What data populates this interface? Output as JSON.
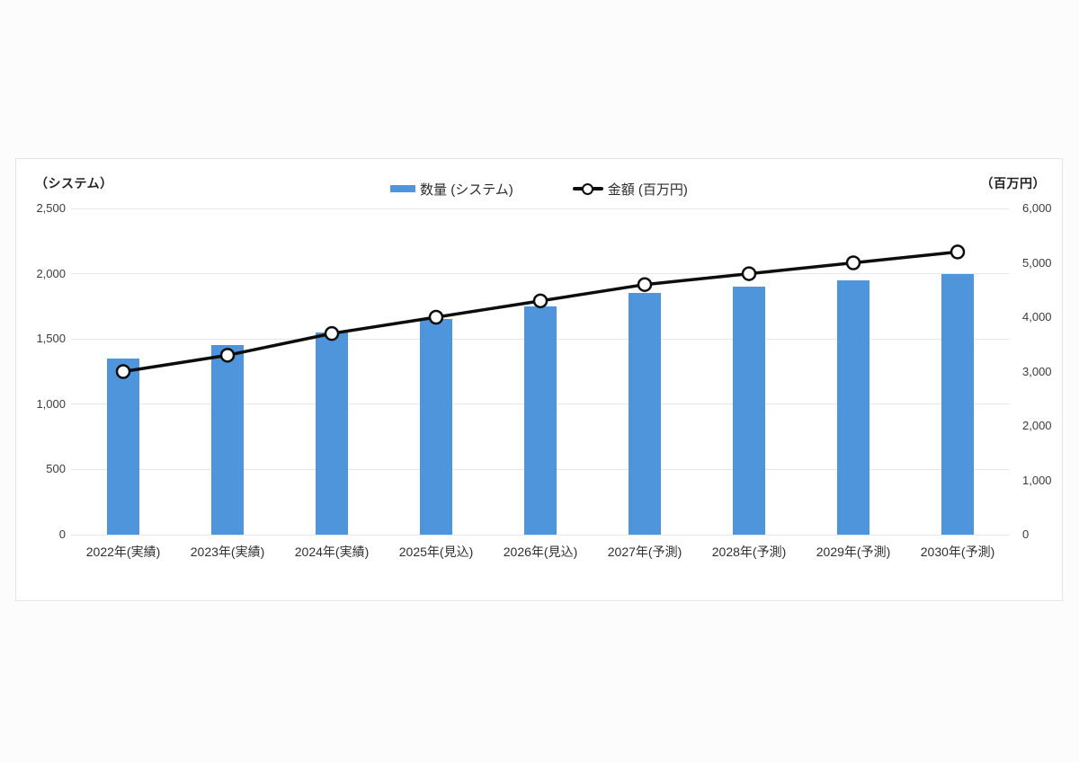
{
  "chart_data": {
    "type": "bar",
    "subtype": "combo-bar-line",
    "categories": [
      "2022年(実績)",
      "2023年(実績)",
      "2024年(実績)",
      "2025年(見込)",
      "2026年(見込)",
      "2027年(予測)",
      "2028年(予測)",
      "2029年(予測)",
      "2030年(予測)"
    ],
    "series": [
      {
        "name": "数量 (システム)",
        "type": "bar",
        "axis": "left",
        "color": "#4f95db",
        "values": [
          1350,
          1450,
          1550,
          1650,
          1750,
          1850,
          1900,
          1950,
          2000
        ]
      },
      {
        "name": "金額 (百万円)",
        "type": "line",
        "axis": "right",
        "color": "#0d0d0d",
        "marker": "open-circle",
        "marker_fill": "#ffffff",
        "values": [
          3000,
          3300,
          3700,
          4000,
          4300,
          4600,
          4800,
          5000,
          5200
        ]
      }
    ],
    "left_axis": {
      "title": "（システム）",
      "min": 0,
      "max": 2500,
      "tick_step": 500
    },
    "right_axis": {
      "title": "（百万円）",
      "min": 0,
      "max": 6000,
      "tick_step": 1000
    },
    "grid": "horizontal",
    "legend_position": "top-center",
    "colors": {
      "grid": "#e7e7e7",
      "background": "#ffffff"
    }
  }
}
